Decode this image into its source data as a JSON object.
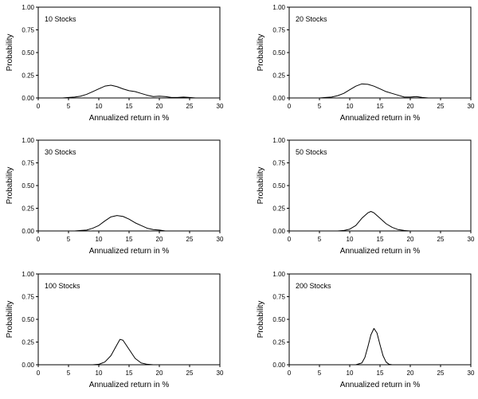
{
  "chart_data": [
    {
      "type": "line",
      "title": "10 Stocks",
      "xlabel": "Annualized return in %",
      "ylabel": "Probability",
      "xlim": [
        0,
        30
      ],
      "ylim": [
        0,
        1
      ],
      "xticks": [
        0,
        5,
        10,
        15,
        20,
        25,
        30
      ],
      "yticks": [
        0.0,
        0.25,
        0.5,
        0.75,
        1.0
      ],
      "ytick_labels": [
        "0.00",
        "0.25",
        "0.50",
        "0.75",
        "1.00"
      ],
      "series": [
        {
          "x": [
            0,
            4,
            5,
            6,
            7,
            8,
            9,
            10,
            11,
            12,
            13,
            14,
            15,
            16,
            17,
            18,
            19,
            20,
            21,
            22,
            23,
            24,
            25,
            26,
            30
          ],
          "y": [
            0,
            0,
            0.005,
            0.01,
            0.02,
            0.04,
            0.07,
            0.1,
            0.13,
            0.14,
            0.125,
            0.1,
            0.08,
            0.07,
            0.05,
            0.03,
            0.015,
            0.02,
            0.015,
            0.005,
            0.005,
            0.01,
            0.005,
            0,
            0
          ]
        }
      ]
    },
    {
      "type": "line",
      "title": "20 Stocks",
      "xlabel": "Annualized return in %",
      "ylabel": "Probability",
      "xlim": [
        0,
        30
      ],
      "ylim": [
        0,
        1
      ],
      "xticks": [
        0,
        5,
        10,
        15,
        20,
        25,
        30
      ],
      "yticks": [
        0.0,
        0.25,
        0.5,
        0.75,
        1.0
      ],
      "ytick_labels": [
        "0.00",
        "0.25",
        "0.50",
        "0.75",
        "1.00"
      ],
      "series": [
        {
          "x": [
            0,
            5,
            6,
            7,
            8,
            9,
            10,
            11,
            12,
            13,
            14,
            15,
            16,
            17,
            18,
            19,
            20,
            21,
            22,
            23,
            30
          ],
          "y": [
            0,
            0,
            0.005,
            0.01,
            0.025,
            0.05,
            0.09,
            0.13,
            0.155,
            0.15,
            0.13,
            0.1,
            0.07,
            0.05,
            0.03,
            0.01,
            0.01,
            0.015,
            0.005,
            0,
            0
          ]
        }
      ]
    },
    {
      "type": "line",
      "title": "30 Stocks",
      "xlabel": "Annualized return in %",
      "ylabel": "Probability",
      "xlim": [
        0,
        30
      ],
      "ylim": [
        0,
        1
      ],
      "xticks": [
        0,
        5,
        10,
        15,
        20,
        25,
        30
      ],
      "yticks": [
        0.0,
        0.25,
        0.5,
        0.75,
        1.0
      ],
      "ytick_labels": [
        "0.00",
        "0.25",
        "0.50",
        "0.75",
        "1.00"
      ],
      "series": [
        {
          "x": [
            0,
            6,
            7,
            8,
            9,
            10,
            11,
            12,
            13,
            14,
            15,
            16,
            17,
            18,
            19,
            20,
            21,
            30
          ],
          "y": [
            0,
            0,
            0.005,
            0.01,
            0.03,
            0.06,
            0.11,
            0.155,
            0.17,
            0.16,
            0.13,
            0.09,
            0.06,
            0.03,
            0.015,
            0.01,
            0,
            0
          ]
        }
      ]
    },
    {
      "type": "line",
      "title": "50 Stocks",
      "xlabel": "Annualized return in %",
      "ylabel": "Probability",
      "xlim": [
        0,
        30
      ],
      "ylim": [
        0,
        1
      ],
      "xticks": [
        0,
        5,
        10,
        15,
        20,
        25,
        30
      ],
      "yticks": [
        0.0,
        0.25,
        0.5,
        0.75,
        1.0
      ],
      "ytick_labels": [
        "0.00",
        "0.25",
        "0.50",
        "0.75",
        "1.00"
      ],
      "series": [
        {
          "x": [
            0,
            8,
            9,
            10,
            11,
            12,
            13,
            13.5,
            14,
            15,
            16,
            17,
            18,
            19,
            20,
            30
          ],
          "y": [
            0,
            0,
            0.005,
            0.02,
            0.06,
            0.14,
            0.2,
            0.215,
            0.2,
            0.14,
            0.08,
            0.04,
            0.015,
            0.005,
            0,
            0
          ]
        }
      ]
    },
    {
      "type": "line",
      "title": "100 Stocks",
      "xlabel": "Annualized return in %",
      "ylabel": "Probability",
      "xlim": [
        0,
        30
      ],
      "ylim": [
        0,
        1
      ],
      "xticks": [
        0,
        5,
        10,
        15,
        20,
        25,
        30
      ],
      "yticks": [
        0.0,
        0.25,
        0.5,
        0.75,
        1.0
      ],
      "ytick_labels": [
        "0.00",
        "0.25",
        "0.50",
        "0.75",
        "1.00"
      ],
      "series": [
        {
          "x": [
            0,
            9,
            10,
            11,
            12,
            13,
            13.5,
            14,
            15,
            16,
            17,
            18,
            19,
            30
          ],
          "y": [
            0,
            0,
            0.005,
            0.03,
            0.1,
            0.22,
            0.28,
            0.27,
            0.17,
            0.07,
            0.02,
            0.005,
            0,
            0
          ]
        }
      ]
    },
    {
      "type": "line",
      "title": "200 Stocks",
      "xlabel": "Annualized return in %",
      "ylabel": "Probability",
      "xlim": [
        0,
        30
      ],
      "ylim": [
        0,
        1
      ],
      "xticks": [
        0,
        5,
        10,
        15,
        20,
        25,
        30
      ],
      "yticks": [
        0.0,
        0.25,
        0.5,
        0.75,
        1.0
      ],
      "ytick_labels": [
        "0.00",
        "0.25",
        "0.50",
        "0.75",
        "1.00"
      ],
      "series": [
        {
          "x": [
            0,
            11,
            12,
            12.5,
            13,
            13.5,
            14,
            14.5,
            15,
            15.5,
            16,
            16.5,
            17,
            30
          ],
          "y": [
            0,
            0,
            0.02,
            0.08,
            0.2,
            0.33,
            0.4,
            0.35,
            0.22,
            0.1,
            0.03,
            0.005,
            0,
            0
          ]
        }
      ]
    }
  ]
}
